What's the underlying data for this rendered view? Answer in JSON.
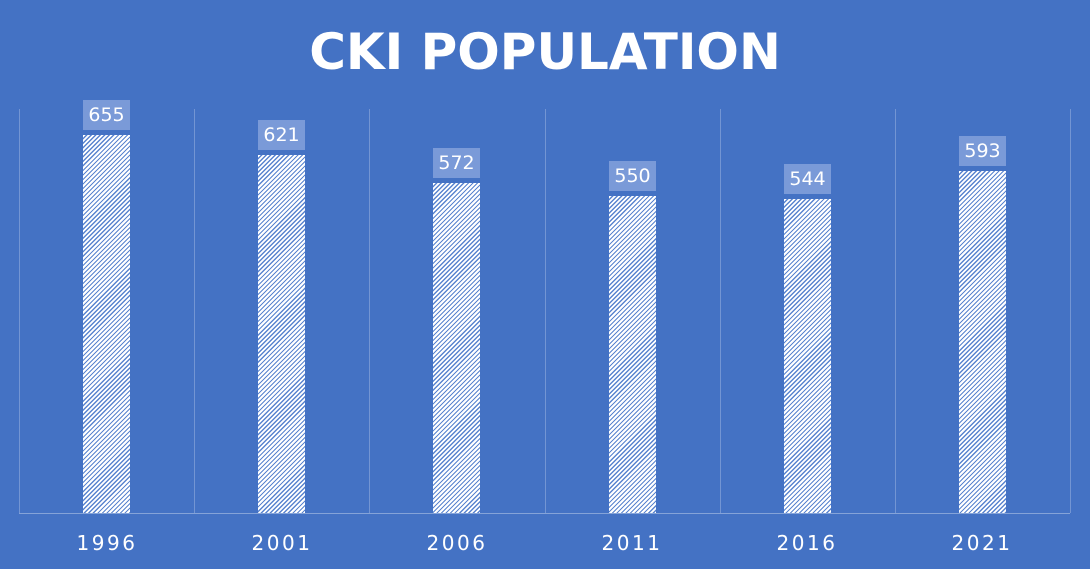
{
  "chart_data": {
    "type": "bar",
    "title": "CKI POPULATION",
    "categories": [
      "1996",
      "2001",
      "2006",
      "2011",
      "2016",
      "2021"
    ],
    "values": [
      655,
      621,
      572,
      550,
      544,
      593
    ],
    "data_labels": [
      "655",
      "621",
      "572",
      "550",
      "544",
      "593"
    ],
    "xlabel": "",
    "ylabel": "",
    "ylim": [
      0,
      700
    ],
    "grid": "vertical category separators",
    "legend": "none",
    "colors": {
      "background": "#4472C4",
      "bar_fill": "#ffffff",
      "bar_hatch": "#5a84cf",
      "label_box": "#7a9ad8",
      "text": "#ffffff"
    }
  }
}
